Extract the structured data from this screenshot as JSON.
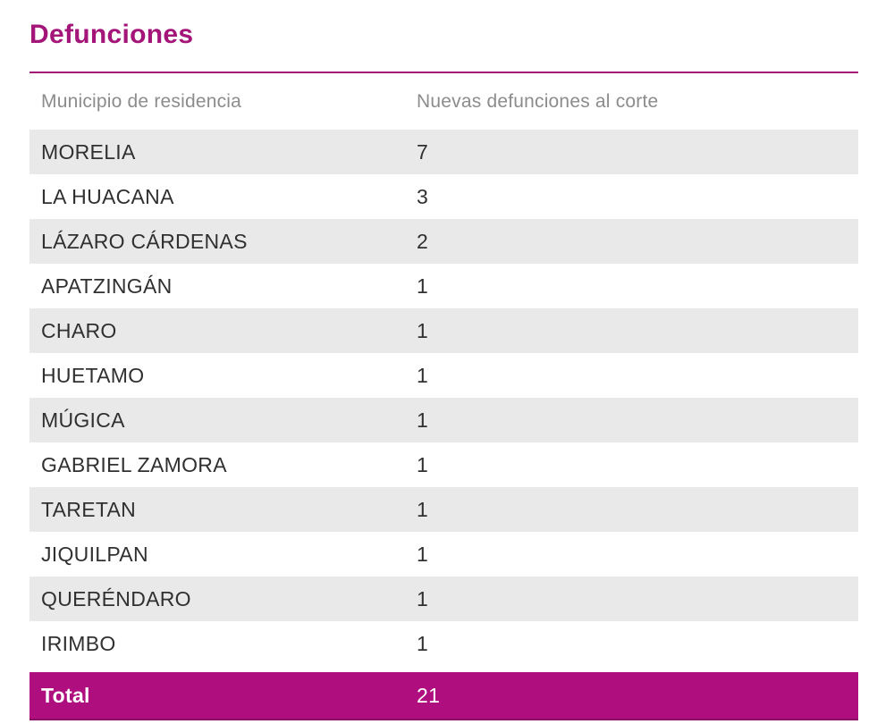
{
  "title": "Defunciones",
  "chart_data": {
    "type": "table",
    "title": "Defunciones",
    "columns": [
      "Municipio de residencia",
      "Nuevas defunciones al corte"
    ],
    "rows": [
      [
        "MORELIA",
        7
      ],
      [
        "LA HUACANA",
        3
      ],
      [
        "LÁZARO CÁRDENAS",
        2
      ],
      [
        "APATZINGÁN",
        1
      ],
      [
        "CHARO",
        1
      ],
      [
        "HUETAMO",
        1
      ],
      [
        "MÚGICA",
        1
      ],
      [
        "GABRIEL ZAMORA",
        1
      ],
      [
        "TARETAN",
        1
      ],
      [
        "JIQUILPAN",
        1
      ],
      [
        "QUERÉNDARO",
        1
      ],
      [
        "IRIMBO",
        1
      ]
    ],
    "total_row": [
      "Total",
      21
    ],
    "layout_hints": {
      "row_striping": "alternating starting gray",
      "total_row_highlighted": true
    }
  },
  "colors": {
    "accent_magenta": "#A31578",
    "total_row_bg": "#AF0E7F",
    "total_row_border": "#8A0A64",
    "row_alt_bg": "#E9E9E9",
    "header_text": "#8C8C8C",
    "row_text": "#303030",
    "total_text": "#FFFFFF",
    "background": "#FFFFFF"
  }
}
